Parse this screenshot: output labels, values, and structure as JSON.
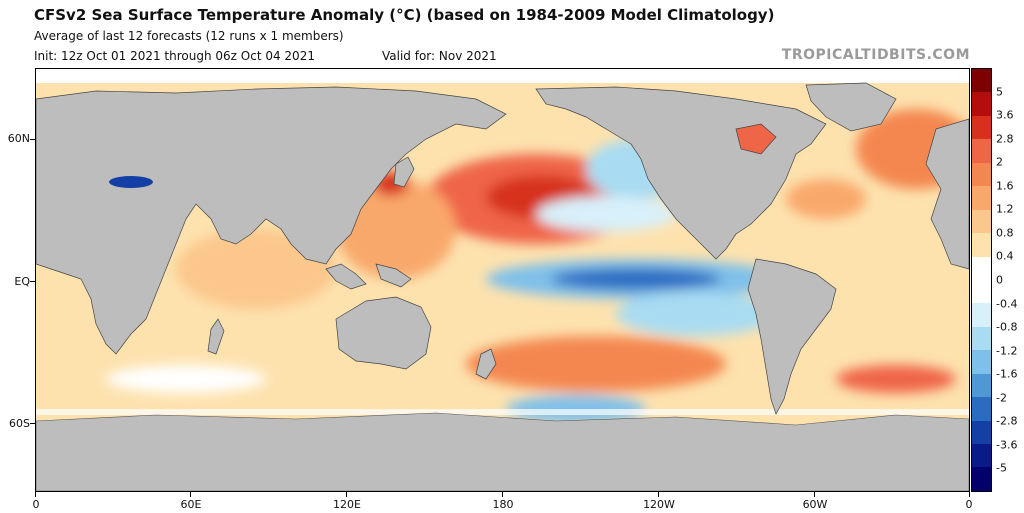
{
  "header": {
    "title": "CFSv2 Sea Surface Temperature Anomaly (°C) (based on 1984-2009 Model Climatology)",
    "subtitle": "Average of last 12 forecasts (12 runs x 1 members)",
    "init": "Init: 12z Oct 01 2021 through 06z Oct 04 2021",
    "valid": "Valid for: Nov 2021",
    "brand": "TROPICALTIDBITS.COM"
  },
  "map": {
    "lat_labels": [
      "60N",
      "EQ",
      "60S"
    ],
    "lon_labels": [
      "0",
      "60E",
      "120E",
      "180",
      "120W",
      "60W",
      "0"
    ],
    "land_color": "#bdbdbd"
  },
  "colorbar": {
    "labels": [
      "5",
      "3.6",
      "2.8",
      "2",
      "1.6",
      "1.2",
      "0.8",
      "0.4",
      "0",
      "-0.4",
      "-0.8",
      "-1.2",
      "-1.6",
      "-2",
      "-2.8",
      "-3.6",
      "-5"
    ],
    "colors": [
      "#7f0000",
      "#b40d0d",
      "#d7301f",
      "#ef6548",
      "#f4874f",
      "#f9a86c",
      "#fbc78c",
      "#fde2ae",
      "#ffffff",
      "#ffffff",
      "#d8f0fa",
      "#a9dcf2",
      "#7fc0ea",
      "#4f98d6",
      "#2a6cc2",
      "#143fa6",
      "#0a1a8a",
      "#03006e"
    ]
  }
}
